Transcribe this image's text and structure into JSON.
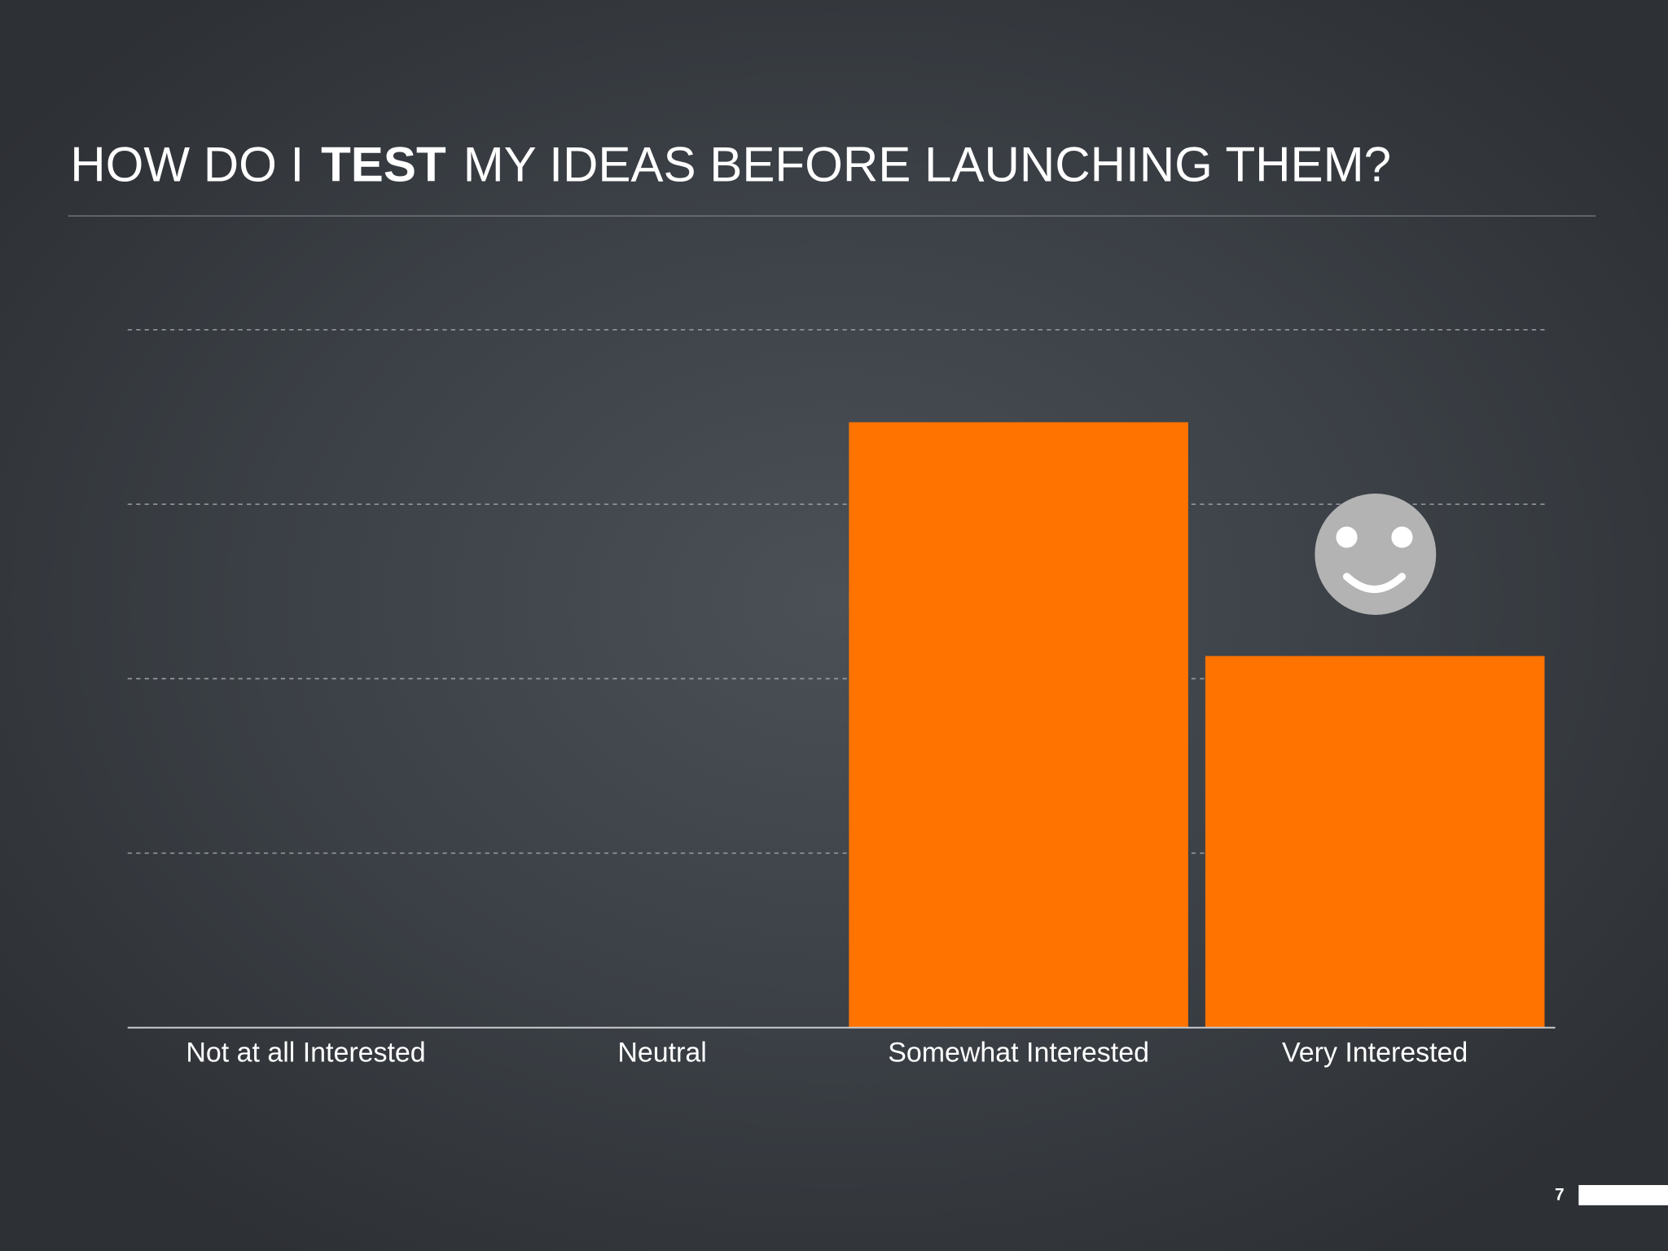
{
  "chart_data": {
    "type": "bar",
    "title_parts": [
      "HOW DO I",
      "TEST",
      "MY IDEAS BEFORE LAUNCHING THEM?"
    ],
    "categories": [
      "Not at all Interested",
      "Neutral",
      "Somewhat Interested",
      "Very Interested"
    ],
    "values": [
      0,
      0,
      3.47,
      2.13
    ],
    "color": "#ff7300",
    "ylim": [
      0,
      4
    ],
    "yticks": [
      0,
      1,
      2,
      3,
      4
    ],
    "grid": true
  },
  "page_number": "7"
}
